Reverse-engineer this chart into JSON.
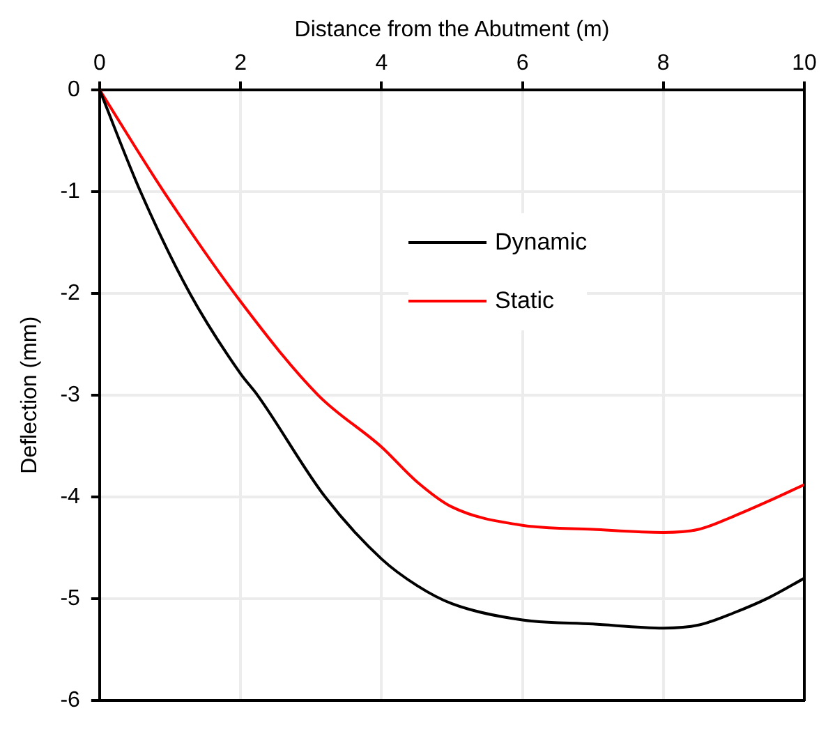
{
  "chart_data": {
    "type": "line",
    "xlabel": "Distance from the Abutment (m)",
    "ylabel": "Deflection (mm)",
    "xlim": [
      0,
      10
    ],
    "xticks": [
      0,
      2,
      4,
      6,
      8,
      10
    ],
    "ylim": [
      -6,
      0
    ],
    "yticks": [
      0,
      -1,
      -2,
      -3,
      -4,
      -5,
      -6
    ],
    "grid": true,
    "legend": "top",
    "marker": "none",
    "line_style": "solid",
    "series": [
      {
        "name": "Dynamic",
        "color": "#000000",
        "x": [
          0,
          0.58,
          1.28,
          2,
          2.24,
          3.2,
          4,
          4.5,
          5,
          6,
          7,
          8,
          8.5,
          9,
          9.5,
          10
        ],
        "values": [
          0,
          -1,
          -2,
          -2.79,
          -3,
          -4,
          -4.61,
          -4.87,
          -5.05,
          -5.21,
          -5.25,
          -5.29,
          -5.26,
          -5.14,
          -4.99,
          -4.8
        ]
      },
      {
        "name": "Static",
        "color": "#ff0000",
        "x": [
          0,
          0.91,
          2,
          3.1,
          4,
          4.5,
          5,
          6,
          7,
          8,
          8.5,
          9,
          9.5,
          10
        ],
        "values": [
          0,
          -1,
          -2.08,
          -3,
          -3.51,
          -3.85,
          -4.1,
          -4.28,
          -4.32,
          -4.35,
          -4.32,
          -4.19,
          -4.04,
          -3.88
        ]
      }
    ]
  }
}
